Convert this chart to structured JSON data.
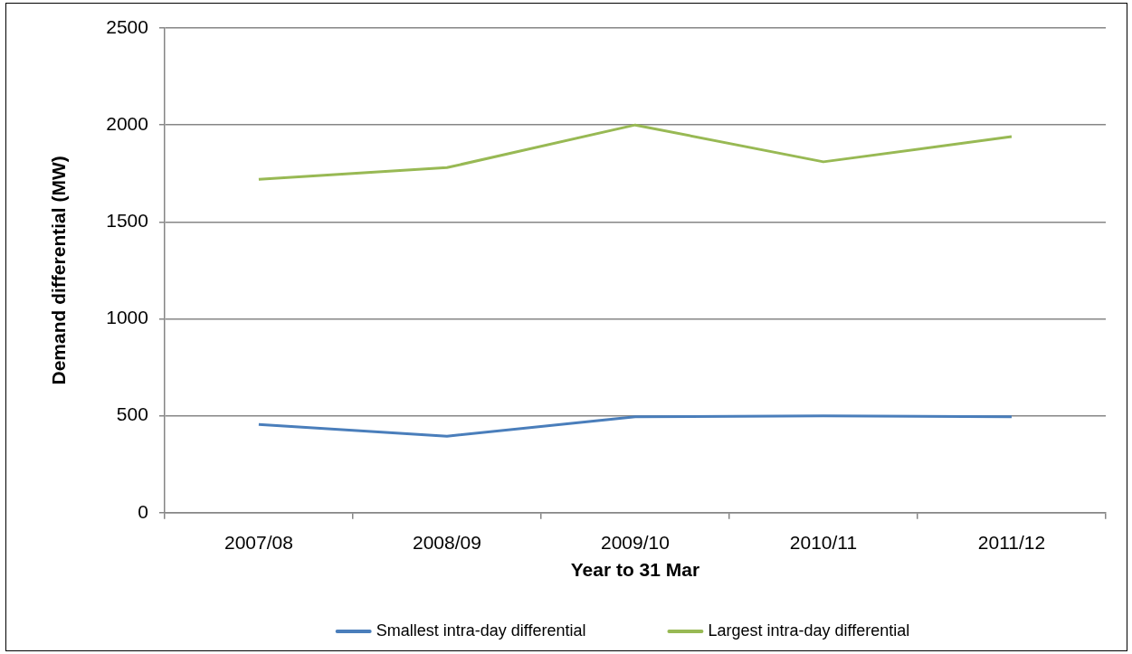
{
  "chart_data": {
    "type": "line",
    "xlabel": "Year to 31 Mar",
    "ylabel": "Demand differential (MW)",
    "categories": [
      "2007/08",
      "2008/09",
      "2009/10",
      "2010/11",
      "2011/12"
    ],
    "series": [
      {
        "name": "Smallest intra-day differential",
        "color": "#4a7ebb",
        "values": [
          455,
          395,
          495,
          500,
          495
        ]
      },
      {
        "name": "Largest intra-day differential",
        "color": "#98b954",
        "values": [
          1720,
          1780,
          2000,
          1810,
          1940
        ]
      }
    ],
    "ylim": [
      0,
      2500
    ],
    "yticks": [
      0,
      500,
      1000,
      1500,
      2000,
      2500
    ],
    "grid": "y",
    "legend": "bottom",
    "marker": "none",
    "line_style": "solid"
  }
}
